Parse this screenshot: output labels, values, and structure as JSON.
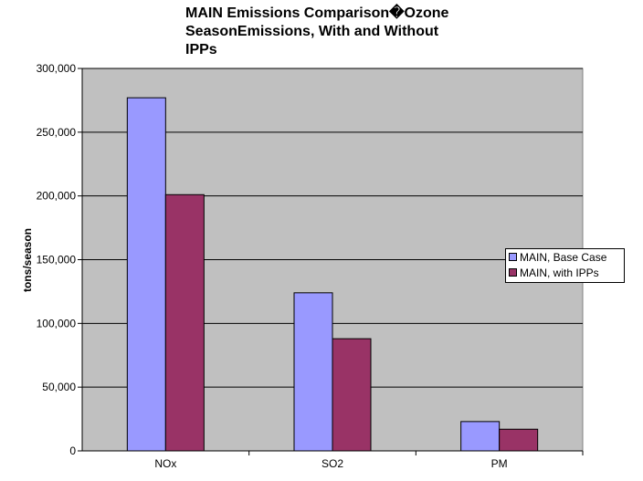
{
  "chart_data": {
    "type": "bar",
    "title_lines": [
      "MAIN Emissions Comparison�Ozone",
      "SeasonEmissions, With and Without",
      "IPPs"
    ],
    "categories": [
      "NOx",
      "SO2",
      "PM"
    ],
    "series": [
      {
        "name": "MAIN, Base Case",
        "color": "#9999ff",
        "values": [
          277000,
          124000,
          23000
        ]
      },
      {
        "name": "MAIN, with IPPs",
        "color": "#993366",
        "values": [
          201000,
          88000,
          17000
        ]
      }
    ],
    "xlabel": "",
    "ylabel": "tons/season",
    "ylim": [
      0,
      300000
    ],
    "yticks": [
      0,
      50000,
      100000,
      150000,
      200000,
      250000,
      300000
    ],
    "ytick_labels": [
      "0",
      "50,000",
      "100,000",
      "150,000",
      "200,000",
      "250,000",
      "300,000"
    ],
    "grid": true,
    "plot_bg": "#c0c0c0",
    "legend": "right"
  }
}
